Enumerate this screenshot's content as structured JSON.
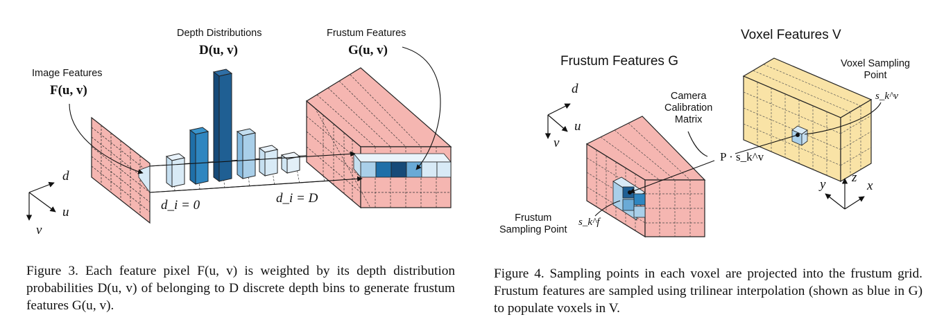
{
  "figure3": {
    "label_depth_dist": "Depth Distributions",
    "math_depth_dist": "D(u, v)",
    "label_frustum_feat": "Frustum Features",
    "math_frustum_feat": "G(u, v)",
    "label_image_feat": "Image Features",
    "math_image_feat": "F(u, v)",
    "axis_d": "d",
    "axis_u": "u",
    "axis_v": "v",
    "di_zero": "d_i = 0",
    "di_D": "d_i = D",
    "caption": "Figure 3. Each feature pixel F(u, v) is weighted by its depth distribution probabilities D(u, v) of belonging to D discrete depth bins to generate frustum features G(u, v)."
  },
  "figure4": {
    "label_voxel_feat": "Voxel Features V",
    "label_frustum_feat": "Frustum Features G",
    "label_voxel_sampling": "Voxel Sampling\nPoint",
    "math_skv": "s_k^v",
    "label_camera": "Camera\nCalibration\nMatrix",
    "math_P": "P · s_k^v",
    "label_frustum_sampling": "Frustum\nSampling Point",
    "math_skf": "s_k^f",
    "axis_d": "d",
    "axis_u": "u",
    "axis_v": "v",
    "axis_x": "x",
    "axis_y": "y",
    "axis_z": "z",
    "caption": "Figure 4. Sampling points in each voxel are projected into the frustum grid. Frustum features are sampled using trilinear interpolation (shown as blue in G) to populate voxels in V."
  },
  "colors": {
    "pink": "#f5b6b1",
    "yellow": "#f9e3a6",
    "blue_dark": "#1f5f93",
    "blue_mid": "#2f86c0",
    "blue_light": "#a9cfe9",
    "blue_pale": "#d8eaf6"
  }
}
